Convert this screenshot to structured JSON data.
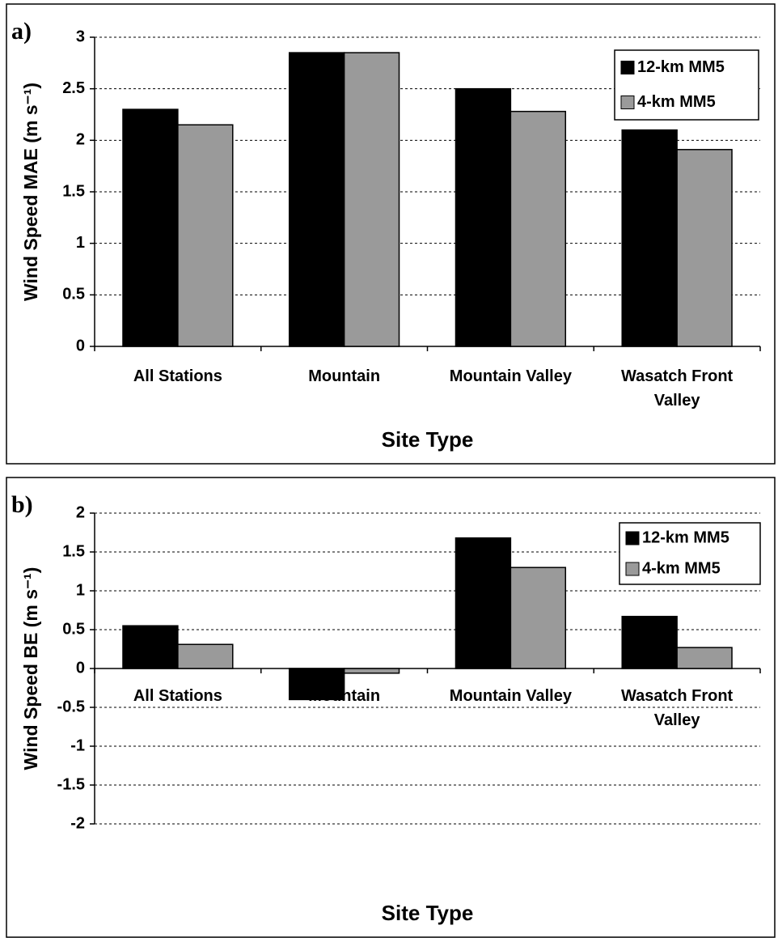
{
  "chart_data": [
    {
      "type": "bar",
      "panel_label": "a)",
      "y_label": "Wind Speed MAE (m s⁻¹)",
      "x_label": "Site Type",
      "categories": [
        "All Stations",
        "Mountain",
        "Mountain Valley",
        "Wasatch Front Valley"
      ],
      "series": [
        {
          "name": "12-km MM5",
          "color": "#000000",
          "values": [
            2.3,
            2.85,
            2.5,
            2.1
          ]
        },
        {
          "name": "4-km MM5",
          "color": "#9a9a9a",
          "values": [
            2.15,
            2.85,
            2.28,
            1.91
          ]
        }
      ],
      "ylim": [
        0,
        3
      ],
      "yticks": [
        0,
        0.5,
        1,
        1.5,
        2,
        2.5,
        3
      ],
      "grid": true,
      "legend": "upper right"
    },
    {
      "type": "bar",
      "panel_label": "b)",
      "y_label": "Wind Speed BE (m s⁻¹)",
      "x_label": "Site Type",
      "categories": [
        "All Stations",
        "Mountain",
        "Mountain Valley",
        "Wasatch Front Valley"
      ],
      "series": [
        {
          "name": "12-km MM5",
          "color": "#000000",
          "values": [
            0.55,
            -0.4,
            1.68,
            0.67
          ]
        },
        {
          "name": "4-km MM5",
          "color": "#9a9a9a",
          "values": [
            0.31,
            -0.06,
            1.3,
            0.27
          ]
        }
      ],
      "ylim": [
        -2,
        2
      ],
      "yticks": [
        -2,
        -1.5,
        -1,
        -0.5,
        0,
        0.5,
        1,
        1.5,
        2
      ],
      "grid": true,
      "legend": "upper right"
    }
  ]
}
